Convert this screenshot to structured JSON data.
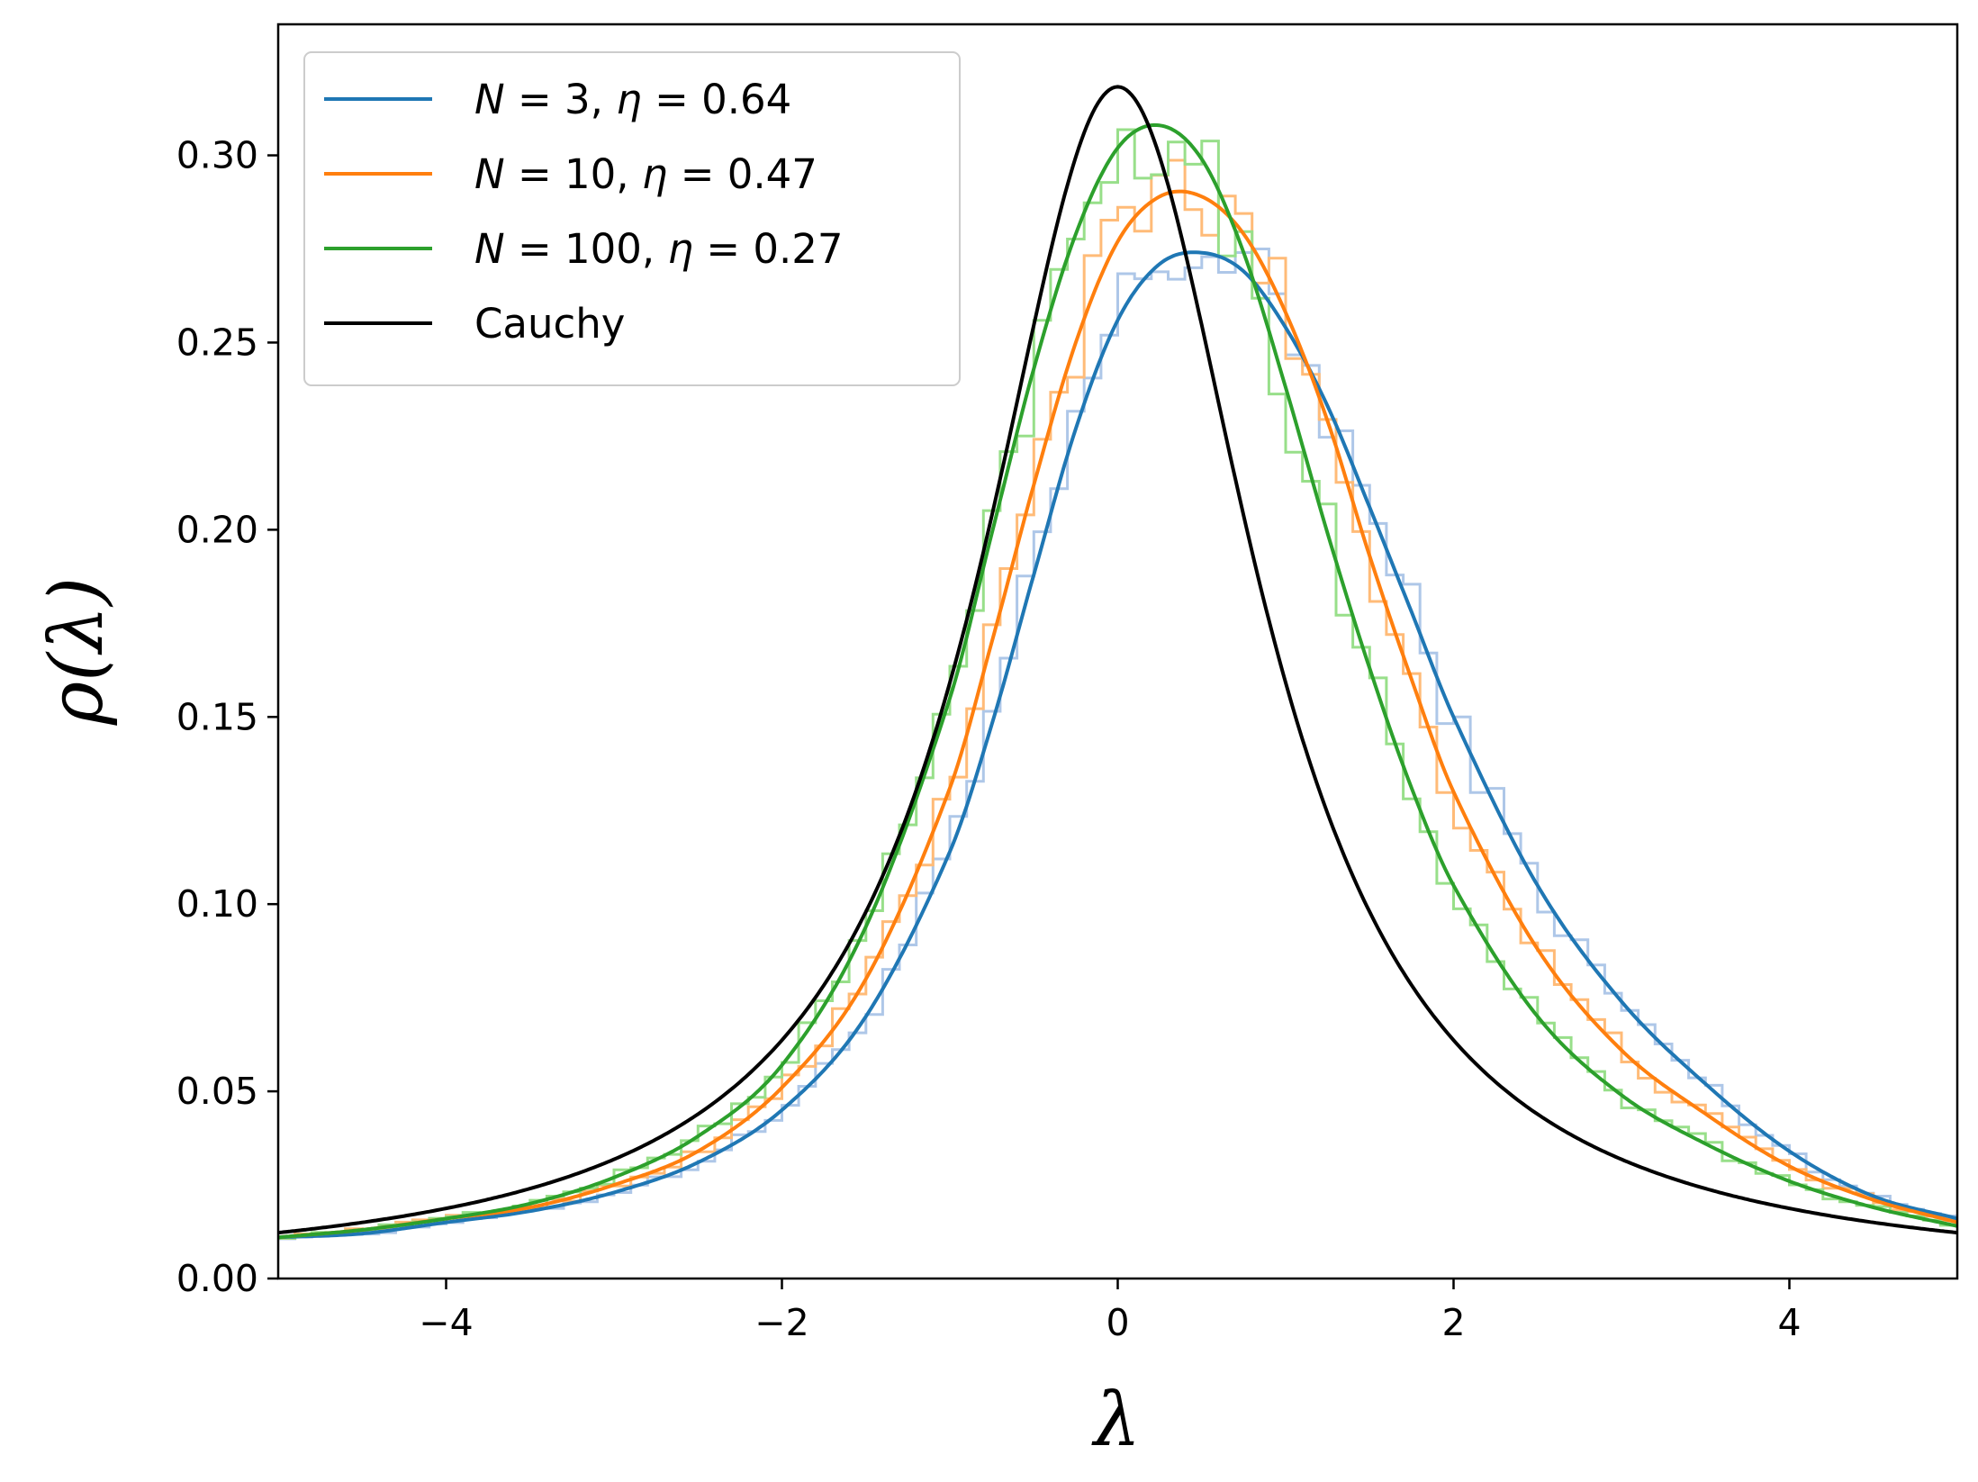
{
  "chart_data": {
    "type": "line",
    "title": "",
    "xlabel": "λ",
    "ylabel": "ρ(λ)",
    "xlim": [
      -5,
      5
    ],
    "ylim": [
      0,
      0.335
    ],
    "grid": false,
    "legend_position": "top-left",
    "x_ticks": [
      -4,
      -2,
      0,
      2,
      4
    ],
    "x_tick_labels": [
      "−4",
      "−2",
      "0",
      "2",
      "4"
    ],
    "y_ticks": [
      0.0,
      0.05,
      0.1,
      0.15,
      0.2,
      0.25,
      0.3
    ],
    "y_tick_labels": [
      "0.00",
      "0.05",
      "0.10",
      "0.15",
      "0.20",
      "0.25",
      "0.30"
    ],
    "x": [
      -5.0,
      -4.5,
      -4.0,
      -3.5,
      -3.0,
      -2.5,
      -2.0,
      -1.5,
      -1.0,
      -0.75,
      -0.5,
      -0.25,
      0.0,
      0.25,
      0.5,
      0.75,
      1.0,
      1.25,
      1.5,
      1.75,
      2.0,
      2.5,
      3.0,
      3.5,
      4.0,
      4.5,
      5.0
    ],
    "series": [
      {
        "name": "N = 3, η =  0.64",
        "name_parts": [
          "N",
          " = 3, ",
          "η",
          " =  0.64"
        ],
        "color": "#1f77b4",
        "hist_color": "#aec7e8",
        "values": [
          0.011,
          0.012,
          0.015,
          0.018,
          0.023,
          0.031,
          0.045,
          0.07,
          0.114,
          0.148,
          0.188,
          0.227,
          0.256,
          0.271,
          0.274,
          0.269,
          0.254,
          0.233,
          0.206,
          0.178,
          0.15,
          0.105,
          0.074,
          0.052,
          0.034,
          0.022,
          0.016
        ]
      },
      {
        "name": "N = 10, η =  0.47",
        "name_parts": [
          "N",
          " = 10, ",
          "η",
          " =  0.47"
        ],
        "color": "#ff7f0e",
        "hist_color": "#ffbb78",
        "values": [
          0.011,
          0.013,
          0.016,
          0.019,
          0.025,
          0.034,
          0.051,
          0.08,
          0.131,
          0.17,
          0.212,
          0.25,
          0.277,
          0.289,
          0.289,
          0.279,
          0.258,
          0.229,
          0.193,
          0.16,
          0.13,
          0.088,
          0.061,
          0.044,
          0.03,
          0.021,
          0.015
        ]
      },
      {
        "name": "N = 100, η =  0.27",
        "name_parts": [
          "N",
          " = 100, ",
          "η",
          " =  0.27"
        ],
        "color": "#2ca02c",
        "hist_color": "#98df8a",
        "values": [
          0.011,
          0.013,
          0.016,
          0.02,
          0.027,
          0.038,
          0.057,
          0.094,
          0.155,
          0.199,
          0.243,
          0.279,
          0.302,
          0.308,
          0.299,
          0.274,
          0.238,
          0.199,
          0.163,
          0.131,
          0.105,
          0.07,
          0.049,
          0.036,
          0.026,
          0.019,
          0.014
        ]
      },
      {
        "name": "Cauchy",
        "name_parts": [
          "",
          "Cauchy",
          "",
          ""
        ],
        "color": "#000000",
        "curve": "cauchy",
        "values": [
          0.0122,
          0.015,
          0.0187,
          0.0241,
          0.0318,
          0.0439,
          0.0637,
          0.0979,
          0.1592,
          0.2037,
          0.2546,
          0.2996,
          0.3183,
          0.2996,
          0.2546,
          0.2037,
          0.1592,
          0.1242,
          0.0979,
          0.0783,
          0.0637,
          0.0439,
          0.0318,
          0.0241,
          0.0187,
          0.015,
          0.0122
        ]
      }
    ]
  }
}
